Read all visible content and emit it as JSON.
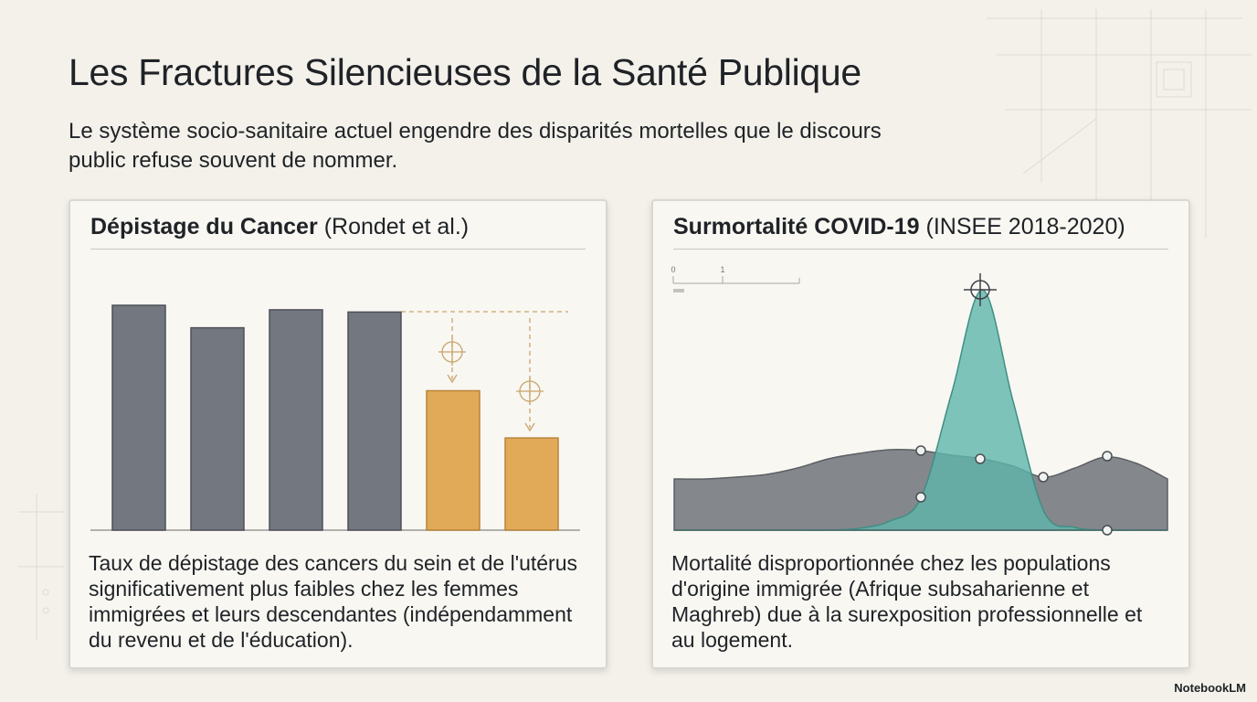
{
  "header": {
    "title": "Les Fractures Silencieuses de la Santé Publique",
    "subtitle": "Le système socio-sanitaire actuel engendre des disparités mortelles que le discours public refuse souvent de nommer."
  },
  "cards": [
    {
      "heading_bold": "Dépistage du Cancer",
      "heading_rest": "(Rondet et al.)",
      "chart_data": {
        "type": "bar",
        "values": [
          100,
          90,
          98,
          97,
          62,
          41
        ],
        "colors": [
          "#737880",
          "#737880",
          "#737880",
          "#737880",
          "#e0aa58",
          "#e0aa58"
        ]
      },
      "body": "Taux de dépistage des cancers du sein et de l'utérus significativement plus faibles chez les femmes immigrées et leurs descendantes (indépendamment du revenu et de l'éducation)."
    },
    {
      "heading_bold": "Surmortalité COVID-19",
      "heading_rest": "(INSEE 2018-2020)",
      "chart_data": {
        "type": "area",
        "scale_labels": [
          "0",
          "1"
        ],
        "series": [
          {
            "color": "#7d8186",
            "values": [
              56,
              56,
              58,
              61,
              68,
              78,
              84,
              88,
              87,
              82,
              78,
              70,
              58,
              68,
              80,
              73,
              56
            ]
          },
          {
            "color": "#5fb5ab",
            "values": [
              0,
              0,
              0,
              0,
              0,
              0,
              2,
              10,
              35,
              150,
              263,
              140,
              20,
              3,
              0,
              0,
              0
            ]
          }
        ]
      },
      "body": "Mortalité disproportionnée chez les populations d'origine immigrée (Afrique subsaharienne et Maghreb) due à la surexposition professionnelle et au logement."
    }
  ],
  "footer": {
    "brand": "NotebookLM"
  }
}
